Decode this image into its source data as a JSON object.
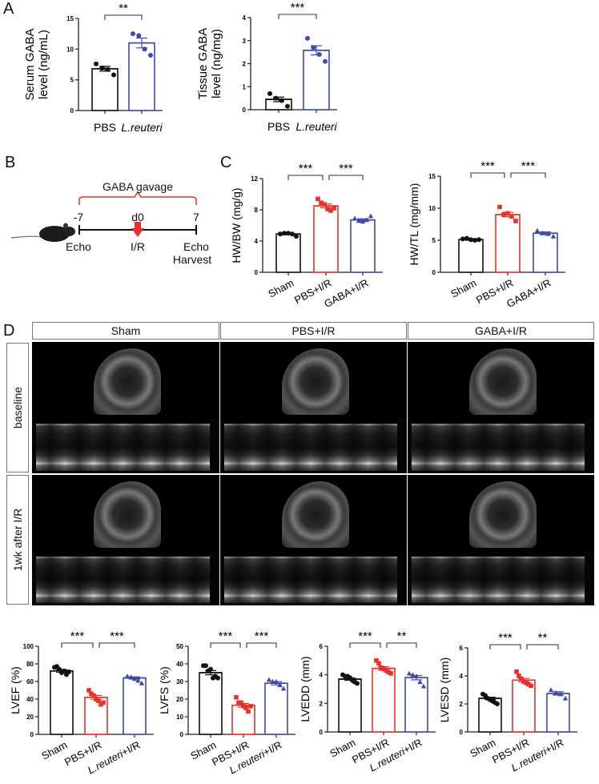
{
  "panels": {
    "A": "A",
    "B": "B",
    "C": "C",
    "D": "D"
  },
  "timeline": {
    "bracket_label": "GABA gavage",
    "ticks": [
      "-7",
      "d0",
      "7"
    ],
    "events": [
      "Echo",
      "I/R",
      "Echo"
    ],
    "event_extra": "Harvest",
    "colors": {
      "bracket": "#d9362b",
      "arrow": "#e8312a"
    }
  },
  "echo_grid": {
    "columns": [
      "Sham",
      "PBS+I/R",
      "GABA+I/R"
    ],
    "rows": [
      "baseline",
      "1wk after I/R"
    ]
  },
  "colors": {
    "black": "#111111",
    "red": "#e8312a",
    "blue": "#3f4aa8"
  },
  "chart_data": [
    {
      "type": "bar",
      "ylabel": [
        "Serum GABA",
        "level (ng/mL)"
      ],
      "ylim": [
        0,
        15
      ],
      "yticks": [
        0,
        5,
        10,
        15
      ],
      "categories": [
        "PBS",
        "L.reuteri"
      ],
      "values": [
        6.8,
        11.0
      ],
      "sem": [
        0.4,
        0.8
      ],
      "points": [
        [
          7.6,
          6.9,
          6.7,
          5.8
        ],
        [
          12.5,
          12.2,
          10.0,
          9.0
        ]
      ],
      "markers": [
        "circle",
        "circle"
      ],
      "colors": [
        "#111111",
        "#3f4aa8"
      ],
      "significance": [
        {
          "pair": [
            0,
            1
          ],
          "label": "**"
        }
      ]
    },
    {
      "type": "bar",
      "ylabel": [
        "Tissue GABA",
        "level (ng/mg)"
      ],
      "ylim": [
        0,
        4
      ],
      "yticks": [
        0,
        1,
        2,
        3,
        4
      ],
      "categories": [
        "PBS",
        "L.reuteri"
      ],
      "values": [
        0.45,
        2.58
      ],
      "sem": [
        0.1,
        0.2
      ],
      "points": [
        [
          0.7,
          0.5,
          0.4,
          0.15
        ],
        [
          3.1,
          2.7,
          2.4,
          2.1
        ]
      ],
      "markers": [
        "circle",
        "circle"
      ],
      "colors": [
        "#111111",
        "#3f4aa8"
      ],
      "significance": [
        {
          "pair": [
            0,
            1
          ],
          "label": "***"
        }
      ]
    },
    {
      "type": "bar",
      "ylabel": [
        "HW/BW (mg/g)"
      ],
      "ylim": [
        0,
        12
      ],
      "yticks": [
        0,
        4,
        8,
        12
      ],
      "categories": [
        "Sham",
        "PBS+I/R",
        "GABA+I/R"
      ],
      "values": [
        4.9,
        8.5,
        6.7
      ],
      "sem": [
        0.08,
        0.25,
        0.15
      ],
      "points": [
        [
          4.9,
          5.0,
          5.0,
          4.9,
          4.6
        ],
        [
          9.4,
          8.9,
          8.7,
          8.1,
          7.9,
          8.2
        ],
        [
          6.9,
          6.6,
          6.5,
          6.7,
          7.2
        ]
      ],
      "markers": [
        "circle",
        "square",
        "triangle"
      ],
      "colors": [
        "#111111",
        "#e8312a",
        "#3f4aa8"
      ],
      "significance": [
        {
          "pair": [
            0,
            1
          ],
          "label": "***"
        },
        {
          "pair": [
            1,
            2
          ],
          "label": "***"
        }
      ]
    },
    {
      "type": "bar",
      "ylabel": [
        "HW/TL (mg/mm)"
      ],
      "ylim": [
        0,
        15
      ],
      "yticks": [
        0,
        5,
        10,
        15
      ],
      "categories": [
        "Sham",
        "PBS+I/R",
        "GABA+I/R"
      ],
      "values": [
        5.1,
        9.0,
        6.1
      ],
      "sem": [
        0.1,
        0.35,
        0.2
      ],
      "points": [
        [
          5.2,
          5.3,
          5.1,
          5.0,
          5.1
        ],
        [
          10.2,
          9.0,
          9.2,
          8.7,
          8.0
        ],
        [
          6.5,
          6.1,
          6.0,
          5.6
        ]
      ],
      "markers": [
        "circle",
        "square",
        "triangle"
      ],
      "colors": [
        "#111111",
        "#e8312a",
        "#3f4aa8"
      ],
      "significance": [
        {
          "pair": [
            0,
            1
          ],
          "label": "***"
        },
        {
          "pair": [
            1,
            2
          ],
          "label": "***"
        }
      ]
    },
    {
      "type": "bar",
      "ylabel": [
        "LVEF (%)"
      ],
      "ylim": [
        0,
        100
      ],
      "yticks": [
        0,
        20,
        40,
        60,
        80,
        100
      ],
      "categories": [
        "Sham",
        "PBS+I/R",
        "L.reuteri+I/R"
      ],
      "values": [
        72,
        42,
        64
      ],
      "sem": [
        1.5,
        2.2,
        1.3
      ],
      "points": [
        [
          76,
          77,
          74,
          70,
          72,
          68,
          71
        ],
        [
          50,
          46,
          44,
          40,
          38,
          34,
          36
        ],
        [
          66,
          65,
          63,
          61,
          58
        ]
      ],
      "markers": [
        "circle",
        "square",
        "triangle"
      ],
      "colors": [
        "#111111",
        "#e8312a",
        "#3f4aa8"
      ],
      "significance": [
        {
          "pair": [
            0,
            1
          ],
          "label": "***"
        },
        {
          "pair": [
            1,
            2
          ],
          "label": "***"
        }
      ]
    },
    {
      "type": "bar",
      "ylabel": [
        "LVFS (%)"
      ],
      "ylim": [
        0,
        50
      ],
      "yticks": [
        0,
        10,
        20,
        30,
        40,
        50
      ],
      "categories": [
        "Sham",
        "PBS+I/R",
        "L.reuteri+I/R"
      ],
      "values": [
        35,
        16.5,
        29
      ],
      "sem": [
        1.2,
        1.0,
        0.9
      ],
      "points": [
        [
          39,
          39,
          36,
          37,
          32,
          33,
          32
        ],
        [
          21,
          18,
          18,
          16,
          15,
          13,
          16
        ],
        [
          31,
          30,
          30,
          28,
          26
        ]
      ],
      "markers": [
        "circle",
        "square",
        "triangle"
      ],
      "colors": [
        "#111111",
        "#e8312a",
        "#3f4aa8"
      ],
      "significance": [
        {
          "pair": [
            0,
            1
          ],
          "label": "***"
        },
        {
          "pair": [
            1,
            2
          ],
          "label": "***"
        }
      ]
    },
    {
      "type": "bar",
      "ylabel": [
        "LVEDD (mm)"
      ],
      "ylim": [
        0,
        6
      ],
      "yticks": [
        0,
        2,
        4,
        6
      ],
      "categories": [
        "Sham",
        "PBS+I/R",
        "L.reuteri+I/R"
      ],
      "values": [
        3.7,
        4.45,
        3.8
      ],
      "sem": [
        0.08,
        0.12,
        0.15
      ],
      "points": [
        [
          4.0,
          3.9,
          3.9,
          3.8,
          3.6,
          3.5,
          3.4
        ],
        [
          5.0,
          4.8,
          4.5,
          4.4,
          4.3,
          4.2,
          4.1
        ],
        [
          4.1,
          4.0,
          3.9,
          3.5,
          3.2
        ]
      ],
      "markers": [
        "circle",
        "square",
        "triangle"
      ],
      "colors": [
        "#111111",
        "#e8312a",
        "#3f4aa8"
      ],
      "significance": [
        {
          "pair": [
            0,
            1
          ],
          "label": "***"
        },
        {
          "pair": [
            1,
            2
          ],
          "label": "**"
        }
      ]
    },
    {
      "type": "bar",
      "ylabel": [
        "LVESD (mm)"
      ],
      "ylim": [
        0,
        6
      ],
      "yticks": [
        0,
        2,
        4,
        6
      ],
      "categories": [
        "Sham",
        "PBS+I/R",
        "L.reuteri+I/R"
      ],
      "values": [
        2.4,
        3.7,
        2.75
      ],
      "sem": [
        0.08,
        0.12,
        0.12
      ],
      "points": [
        [
          2.7,
          2.6,
          2.4,
          2.3,
          2.2,
          2.1,
          2.0
        ],
        [
          4.3,
          4.0,
          3.8,
          3.6,
          3.5,
          3.4,
          3.3
        ],
        [
          3.0,
          2.8,
          2.7,
          2.4
        ]
      ],
      "markers": [
        "circle",
        "square",
        "triangle"
      ],
      "colors": [
        "#111111",
        "#e8312a",
        "#3f4aa8"
      ],
      "significance": [
        {
          "pair": [
            0,
            1
          ],
          "label": "***"
        },
        {
          "pair": [
            1,
            2
          ],
          "label": "**"
        }
      ]
    }
  ]
}
